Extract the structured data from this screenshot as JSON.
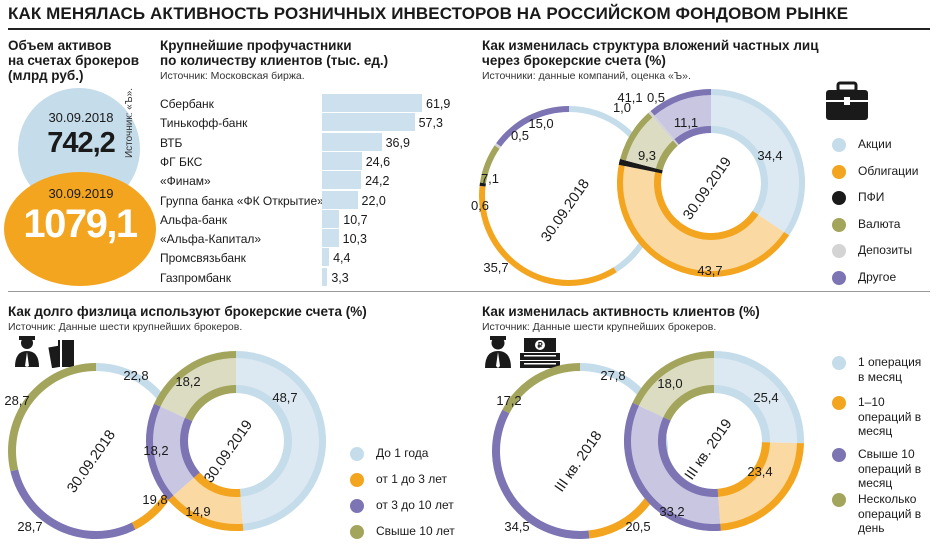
{
  "title": "КАК МЕНЯЛАСЬ АКТИВНОСТЬ РОЗНИЧНЫХ ИНВЕСТОРОВ НА РОССИЙСКОМ ФОНДОВОМ РЫНКЕ",
  "colors": {
    "light_blue": "#c5dcea",
    "light_blue_pale": "#dce9f2",
    "orange": "#f3a51f",
    "orange_pale": "#fbd9a2",
    "black": "#1a1a1a",
    "olive": "#a3a55c",
    "olive_pale": "#dcdcc3",
    "grey": "#d4d4d4",
    "purple": "#7c74b3",
    "purple_pale": "#c9c6e2"
  },
  "assets": {
    "title": "Объем активов\nна счетах брокеров\n(млрд руб.)",
    "source_vertical": "Источник: «Ъ».",
    "date1": "30.09.2018",
    "value1": "742,2",
    "date2": "30.09.2019",
    "value2": "1079,1"
  },
  "brokers": {
    "title": "Крупнейшие профучастники\nпо количеству клиентов (тыс. ед.)",
    "source": "Источник: Московская биржа."
  },
  "structure": {
    "title": "Как изменилась структура вложений частных лиц\nчерез брокерские счета (%)",
    "source": "Источники: данные компаний, оценка «Ъ».",
    "ring_labels": [
      "30.09.2018",
      "30.09.2019"
    ]
  },
  "duration": {
    "title": "Как долго физлица используют брокерские счета (%)",
    "source": "Источник: Данные шести крупнейших брокеров.",
    "ring_labels": [
      "30.09.2018",
      "30.09.2019"
    ]
  },
  "activity": {
    "title": "Как изменилась активность клиентов (%)",
    "source": "Источник: Данные шести крупнейших брокеров.",
    "ring_labels": [
      "III кв. 2018",
      "III кв. 2019"
    ]
  },
  "chart_data": [
    {
      "type": "bar",
      "orientation": "horizontal",
      "categories": [
        "Сбербанк",
        "Тинькофф-банк",
        "ВТБ",
        "ФГ БКС",
        "«Финам»",
        "Группа банка «ФК Открытие»",
        "Альфа-банк",
        "«Альфа-Капитал»",
        "Промсвязьбанк",
        "Газпромбанк"
      ],
      "values": [
        61.9,
        57.3,
        36.9,
        24.6,
        24.2,
        22.0,
        10.7,
        10.3,
        4.4,
        3.3
      ],
      "value_labels": [
        "61,9",
        "57,3",
        "36,9",
        "24,6",
        "24,2",
        "22,0",
        "10,7",
        "10,3",
        "4,4",
        "3,3"
      ]
    },
    {
      "type": "pie",
      "variant": "donut",
      "title": "Как изменилась структура вложений частных лиц через брокерские счета (%)",
      "legend": [
        "Акции",
        "Облигации",
        "ПФИ",
        "Валюта",
        "Депозиты",
        "Другое"
      ],
      "legend_colors": [
        "#c5dcea",
        "#f3a51f",
        "#1a1a1a",
        "#a3a55c",
        "#d4d4d4",
        "#7c74b3"
      ],
      "legend_position": "right",
      "series": [
        {
          "name": "30.09.2018",
          "values": [
            41.1,
            35.7,
            0.6,
            7.1,
            0.5,
            15.0
          ],
          "value_labels": [
            "41,1",
            "35,7",
            "0,6",
            "7,1",
            "0,5",
            "15,0"
          ]
        },
        {
          "name": "30.09.2019",
          "values": [
            34.4,
            43.7,
            1.0,
            9.3,
            0.5,
            11.1
          ],
          "value_labels": [
            "34,4",
            "43,7",
            "1,0",
            "9,3",
            "0,5",
            "11,1"
          ]
        }
      ]
    },
    {
      "type": "pie",
      "variant": "donut",
      "title": "Как долго физлица используют брокерские счета (%)",
      "legend": [
        "До 1 года",
        "от 1 до 3 лет",
        "от 3 до 10 лет",
        "Свыше 10 лет"
      ],
      "legend_colors": [
        "#c5dcea",
        "#f3a51f",
        "#7c74b3",
        "#a3a55c"
      ],
      "legend_position": "right",
      "series": [
        {
          "name": "30.09.2018",
          "values": [
            22.8,
            19.8,
            28.7,
            28.7
          ],
          "value_labels": [
            "22,8",
            "19,8",
            "28,7",
            "28,7"
          ]
        },
        {
          "name": "30.09.2019",
          "values": [
            48.7,
            14.9,
            18.2,
            18.2
          ],
          "value_labels": [
            "48,7",
            "14,9",
            "18,2",
            "18,2"
          ]
        }
      ]
    },
    {
      "type": "pie",
      "variant": "donut",
      "title": "Как изменилась активность клиентов (%)",
      "legend": [
        "1 операция в месяц",
        "1–10 операций в месяц",
        "Свыше 10 операций в месяц",
        "Несколько операций в день"
      ],
      "legend_colors": [
        "#c5dcea",
        "#f3a51f",
        "#7c74b3",
        "#a3a55c"
      ],
      "legend_position": "right",
      "series": [
        {
          "name": "III кв. 2018",
          "values": [
            27.8,
            20.5,
            34.5,
            17.2
          ],
          "value_labels": [
            "27,8",
            "20,5",
            "34,5",
            "17,2"
          ]
        },
        {
          "name": "III кв. 2019",
          "values": [
            25.4,
            23.4,
            33.2,
            18.0
          ],
          "value_labels": [
            "25,4",
            "23,4",
            "33,2",
            "18,0"
          ]
        }
      ]
    }
  ]
}
